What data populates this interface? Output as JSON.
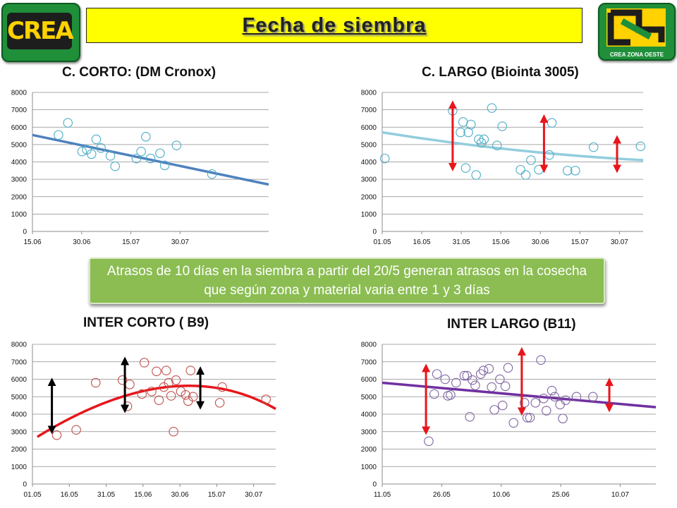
{
  "header": {
    "title": "Fecha de siembra",
    "logo_left_text": "CREA",
    "logo_right_text": "CREA ZONA OESTE"
  },
  "note": "Atrasos de 10 días en la siembra a partir del 20/5 generan atrasos en la cosecha que según zona y material varia entre 1 y 3 días",
  "colors": {
    "title_bg": "#ffff00",
    "note_bg": "#8bbd52",
    "arrow_red": "#e8151b",
    "arrow_black": "#000000"
  },
  "chart_data": [
    {
      "type": "scatter",
      "title": "C. CORTO: (DM Cronox)",
      "x_ticks": [
        "15.06",
        "30.06",
        "15.07",
        "30.07"
      ],
      "ylim": [
        0,
        8000
      ],
      "y_ticks": [
        "0",
        "1000",
        "2000",
        "3000",
        "4000",
        "5000",
        "6000",
        "7000",
        "8000"
      ],
      "grid": true,
      "marker_color": "#4bacc6",
      "trend_color": "#4f81bd",
      "trend": {
        "type": "linear",
        "from": [
          0.0,
          5550
        ],
        "to": [
          1.0,
          2700
        ]
      },
      "points": [
        [
          0.15,
          6250
        ],
        [
          0.11,
          5550
        ],
        [
          0.21,
          4600
        ],
        [
          0.23,
          4700
        ],
        [
          0.25,
          4450
        ],
        [
          0.27,
          5300
        ],
        [
          0.29,
          4800
        ],
        [
          0.33,
          4350
        ],
        [
          0.35,
          3750
        ],
        [
          0.44,
          4200
        ],
        [
          0.46,
          4600
        ],
        [
          0.48,
          5450
        ],
        [
          0.5,
          4200
        ],
        [
          0.54,
          4500
        ],
        [
          0.56,
          3800
        ],
        [
          0.61,
          4950
        ],
        [
          0.76,
          3300
        ]
      ],
      "arrows": []
    },
    {
      "type": "scatter",
      "title": "C. LARGO (Biointa 3005)",
      "x_ticks": [
        "01.05",
        "16.05",
        "31.05",
        "15.06",
        "30.06",
        "15.07",
        "30.07"
      ],
      "ylim": [
        0,
        8000
      ],
      "y_ticks": [
        "0",
        "1000",
        "2000",
        "3000",
        "4000",
        "5000",
        "6000",
        "7000",
        "8000"
      ],
      "grid": true,
      "marker_color": "#4bacc6",
      "trend_color": "#93cddd",
      "trend": {
        "type": "curve",
        "from": [
          0.0,
          5700
        ],
        "mid": [
          0.5,
          4700
        ],
        "to": [
          1.0,
          4100
        ]
      },
      "points": [
        [
          0.01,
          4200
        ],
        [
          0.27,
          6950
        ],
        [
          0.3,
          5700
        ],
        [
          0.31,
          6300
        ],
        [
          0.32,
          3650
        ],
        [
          0.33,
          5700
        ],
        [
          0.34,
          6150
        ],
        [
          0.36,
          3250
        ],
        [
          0.37,
          5300
        ],
        [
          0.38,
          5100
        ],
        [
          0.39,
          5300
        ],
        [
          0.42,
          7100
        ],
        [
          0.44,
          4950
        ],
        [
          0.46,
          6050
        ],
        [
          0.53,
          3550
        ],
        [
          0.55,
          3250
        ],
        [
          0.57,
          4100
        ],
        [
          0.6,
          3550
        ],
        [
          0.64,
          4400
        ],
        [
          0.65,
          6250
        ],
        [
          0.71,
          3500
        ],
        [
          0.74,
          3500
        ],
        [
          0.81,
          4850
        ],
        [
          0.99,
          4900
        ]
      ],
      "arrows": [
        {
          "color": "red",
          "x": 0.27,
          "y1": 7300,
          "y2": 3700
        },
        {
          "color": "red",
          "x": 0.62,
          "y1": 6500,
          "y2": 3600
        },
        {
          "color": "red",
          "x": 0.9,
          "y1": 5300,
          "y2": 3600
        }
      ]
    },
    {
      "type": "scatter",
      "title": "INTER CORTO ( B9)",
      "x_ticks": [
        "01.05",
        "16.05",
        "31.05",
        "15.06",
        "30.06",
        "15.07",
        "30.07"
      ],
      "ylim": [
        0,
        8000
      ],
      "y_ticks": [
        "0",
        "1000",
        "2000",
        "3000",
        "4000",
        "5000",
        "6000",
        "7000",
        "8000"
      ],
      "grid": true,
      "marker_color": "#c0504d",
      "trend_color": "#e8151b",
      "trend": {
        "type": "curve",
        "from": [
          0.02,
          2700
        ],
        "mid": [
          0.55,
          5550
        ],
        "to": [
          1.0,
          4300
        ]
      },
      "points": [
        [
          0.1,
          2800
        ],
        [
          0.18,
          3100
        ],
        [
          0.26,
          5800
        ],
        [
          0.37,
          5950
        ],
        [
          0.39,
          4450
        ],
        [
          0.4,
          5700
        ],
        [
          0.45,
          5150
        ],
        [
          0.46,
          6950
        ],
        [
          0.49,
          5300
        ],
        [
          0.51,
          6450
        ],
        [
          0.52,
          4800
        ],
        [
          0.54,
          5550
        ],
        [
          0.55,
          6500
        ],
        [
          0.56,
          5800
        ],
        [
          0.57,
          5050
        ],
        [
          0.58,
          3000
        ],
        [
          0.59,
          5950
        ],
        [
          0.61,
          5300
        ],
        [
          0.63,
          5100
        ],
        [
          0.64,
          4750
        ],
        [
          0.65,
          6500
        ],
        [
          0.66,
          5000
        ],
        [
          0.77,
          4650
        ],
        [
          0.78,
          5550
        ],
        [
          0.96,
          4850
        ]
      ],
      "arrows": [
        {
          "color": "black",
          "x": 0.08,
          "y1": 5850,
          "y2": 3100
        },
        {
          "color": "black",
          "x": 0.38,
          "y1": 7050,
          "y2": 4300
        },
        {
          "color": "black",
          "x": 0.69,
          "y1": 6500,
          "y2": 4500
        }
      ]
    },
    {
      "type": "scatter",
      "title": "INTER LARGO (B11)",
      "x_ticks": [
        "11.05",
        "26.05",
        "10.06",
        "25.06",
        "10.07"
      ],
      "ylim": [
        0,
        8000
      ],
      "y_ticks": [
        "0",
        "1000",
        "2000",
        "3000",
        "4000",
        "5000",
        "6000",
        "7000",
        "8000"
      ],
      "grid": true,
      "marker_color": "#8064a2",
      "trend_color": "#7030a0",
      "trend": {
        "type": "linear",
        "from": [
          0.0,
          5800
        ],
        "to": [
          1.0,
          4400
        ]
      },
      "points": [
        [
          0.17,
          2450
        ],
        [
          0.19,
          5150
        ],
        [
          0.2,
          6300
        ],
        [
          0.23,
          6000
        ],
        [
          0.24,
          5050
        ],
        [
          0.25,
          5100
        ],
        [
          0.27,
          5800
        ],
        [
          0.3,
          6200
        ],
        [
          0.31,
          6200
        ],
        [
          0.32,
          3850
        ],
        [
          0.33,
          5950
        ],
        [
          0.34,
          5650
        ],
        [
          0.36,
          6300
        ],
        [
          0.37,
          6500
        ],
        [
          0.39,
          6600
        ],
        [
          0.4,
          5550
        ],
        [
          0.41,
          4250
        ],
        [
          0.43,
          6000
        ],
        [
          0.44,
          4500
        ],
        [
          0.45,
          5600
        ],
        [
          0.46,
          6650
        ],
        [
          0.48,
          3500
        ],
        [
          0.52,
          4650
        ],
        [
          0.53,
          3800
        ],
        [
          0.54,
          3800
        ],
        [
          0.56,
          4650
        ],
        [
          0.58,
          7100
        ],
        [
          0.59,
          4900
        ],
        [
          0.6,
          4200
        ],
        [
          0.62,
          5350
        ],
        [
          0.63,
          5000
        ],
        [
          0.65,
          4550
        ],
        [
          0.66,
          3750
        ],
        [
          0.67,
          4800
        ],
        [
          0.71,
          5000
        ],
        [
          0.77,
          5000
        ]
      ],
      "arrows": [
        {
          "color": "red",
          "x": 0.16,
          "y1": 6650,
          "y2": 3050
        },
        {
          "color": "red",
          "x": 0.51,
          "y1": 7600,
          "y2": 4150
        },
        {
          "color": "red",
          "x": 0.83,
          "y1": 5850,
          "y2": 4350
        }
      ]
    }
  ]
}
